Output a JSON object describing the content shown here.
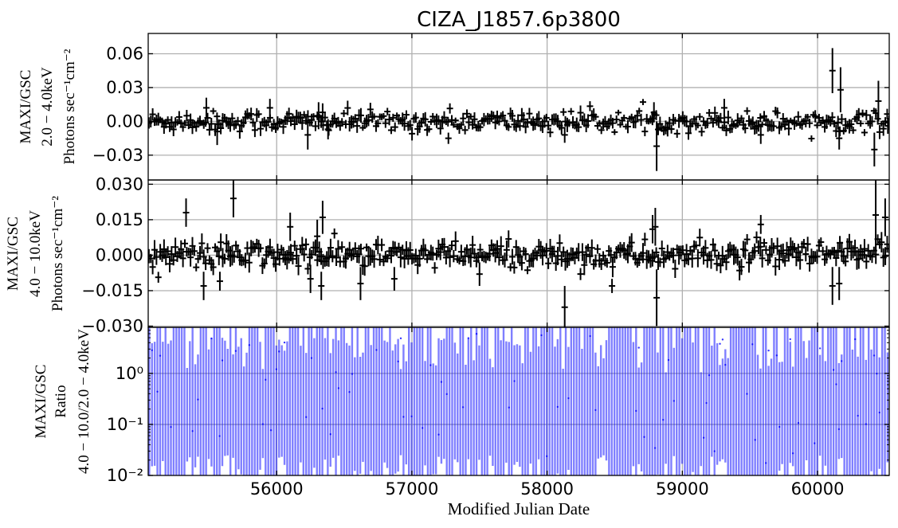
{
  "chart_data": {
    "type": "errorbar",
    "title": "CIZA_J1857.6p3800",
    "xlabel": "Modified Julian Date",
    "xlim": [
      55050,
      60530
    ],
    "xticks": [
      56000,
      57000,
      58000,
      59000,
      60000
    ],
    "xtick_labels": [
      "56000",
      "57000",
      "58000",
      "59000",
      "60000"
    ],
    "grid": true,
    "panels": [
      {
        "id": "soft",
        "ylabel_lines": [
          "MAXI/GSC",
          "2.0 − 4.0keV",
          "Photons sec⁻¹cm⁻²"
        ],
        "ylim": [
          -0.052,
          0.078
        ],
        "yticks": [
          0.06,
          0.03,
          0.0,
          -0.03
        ],
        "ytick_labels": [
          "0.06",
          "0.03",
          "0.00",
          "−0.03"
        ],
        "color": "#000000",
        "noise_sigma": 0.0045,
        "noise_err": 0.0045,
        "points": [
          {
            "x": 55480,
            "y": 0.012,
            "err": 0.009
          },
          {
            "x": 55560,
            "y": -0.009,
            "err": 0.012
          },
          {
            "x": 55950,
            "y": 0.012,
            "err": 0.008
          },
          {
            "x": 56230,
            "y": -0.012,
            "err": 0.013
          },
          {
            "x": 56310,
            "y": 0.005,
            "err": 0.012
          },
          {
            "x": 56340,
            "y": 0.008,
            "err": 0.008
          },
          {
            "x": 56380,
            "y": -0.007,
            "err": 0.009
          },
          {
            "x": 57270,
            "y": -0.015,
            "err": 0.005
          },
          {
            "x": 58130,
            "y": -0.012,
            "err": 0.007
          },
          {
            "x": 58810,
            "y": -0.022,
            "err": 0.022
          },
          {
            "x": 58790,
            "y": 0.008,
            "err": 0.009
          },
          {
            "x": 59310,
            "y": 0.012,
            "err": 0.008
          },
          {
            "x": 59580,
            "y": -0.012,
            "err": 0.008
          },
          {
            "x": 60110,
            "y": 0.045,
            "err": 0.02
          },
          {
            "x": 60170,
            "y": 0.028,
            "err": 0.02
          },
          {
            "x": 60160,
            "y": -0.015,
            "err": 0.01
          },
          {
            "x": 60450,
            "y": 0.018,
            "err": 0.018
          },
          {
            "x": 60420,
            "y": -0.025,
            "err": 0.015
          },
          {
            "x": 60520,
            "y": -0.004,
            "err": 0.007
          }
        ]
      },
      {
        "id": "hard",
        "ylabel_lines": [
          "MAXI/GSC",
          "4.0 − 10.0keV",
          "Photons sec⁻¹cm⁻²"
        ],
        "ylim": [
          -0.0305,
          0.0318
        ],
        "yticks": [
          0.03,
          0.015,
          0.0,
          -0.015,
          -0.03
        ],
        "ytick_labels": [
          "0.030",
          "0.015",
          "0.000",
          "−0.015",
          "−0.030"
        ],
        "color": "#000000",
        "noise_sigma": 0.0028,
        "noise_err": 0.003,
        "points": [
          {
            "x": 55330,
            "y": 0.018,
            "err": 0.006
          },
          {
            "x": 55460,
            "y": -0.013,
            "err": 0.006
          },
          {
            "x": 55580,
            "y": -0.011,
            "err": 0.004
          },
          {
            "x": 55680,
            "y": 0.024,
            "err": 0.008
          },
          {
            "x": 56100,
            "y": 0.012,
            "err": 0.006
          },
          {
            "x": 56250,
            "y": -0.01,
            "err": 0.006
          },
          {
            "x": 56300,
            "y": 0.008,
            "err": 0.007
          },
          {
            "x": 56330,
            "y": -0.013,
            "err": 0.006
          },
          {
            "x": 56340,
            "y": 0.016,
            "err": 0.007
          },
          {
            "x": 56620,
            "y": -0.012,
            "err": 0.007
          },
          {
            "x": 56870,
            "y": -0.01,
            "err": 0.005
          },
          {
            "x": 57500,
            "y": -0.008,
            "err": 0.005
          },
          {
            "x": 58130,
            "y": -0.022,
            "err": 0.009
          },
          {
            "x": 58480,
            "y": -0.013,
            "err": 0.003
          },
          {
            "x": 58780,
            "y": 0.011,
            "err": 0.006
          },
          {
            "x": 58810,
            "y": -0.018,
            "err": 0.012
          },
          {
            "x": 58800,
            "y": 0.012,
            "err": 0.008
          },
          {
            "x": 59580,
            "y": 0.013,
            "err": 0.004
          },
          {
            "x": 60110,
            "y": -0.013,
            "err": 0.008
          },
          {
            "x": 60160,
            "y": -0.012,
            "err": 0.007
          },
          {
            "x": 60430,
            "y": 0.017,
            "err": 0.015
          },
          {
            "x": 60500,
            "y": 0.016,
            "err": 0.008
          }
        ]
      },
      {
        "id": "ratio",
        "ylabel_lines": [
          "MAXI/GSC",
          "Ratio",
          "4.0 − 10.0/2.0 − 4.0keV"
        ],
        "scale": "log",
        "ylim": [
          0.01,
          8
        ],
        "yticks": [
          1,
          0.1,
          0.01
        ],
        "ytick_labels": [
          "10⁰",
          "10⁻¹",
          "10⁻²"
        ],
        "color": "#0000ff",
        "alpha": 0.5
      }
    ]
  }
}
